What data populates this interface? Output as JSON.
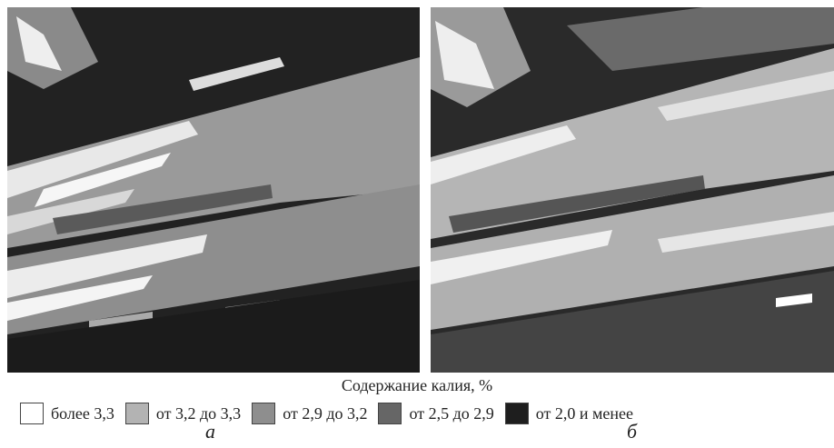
{
  "figure": {
    "legend": {
      "title": "Содержание калия, %",
      "items": [
        "более 3,3",
        "от 3,2 до 3,3",
        "от 2,9 до 3,2",
        "от 2,5 до 2,9",
        "от 2,0 и менее"
      ]
    },
    "panels": [
      {
        "label": "а"
      },
      {
        "label": "б"
      }
    ]
  }
}
